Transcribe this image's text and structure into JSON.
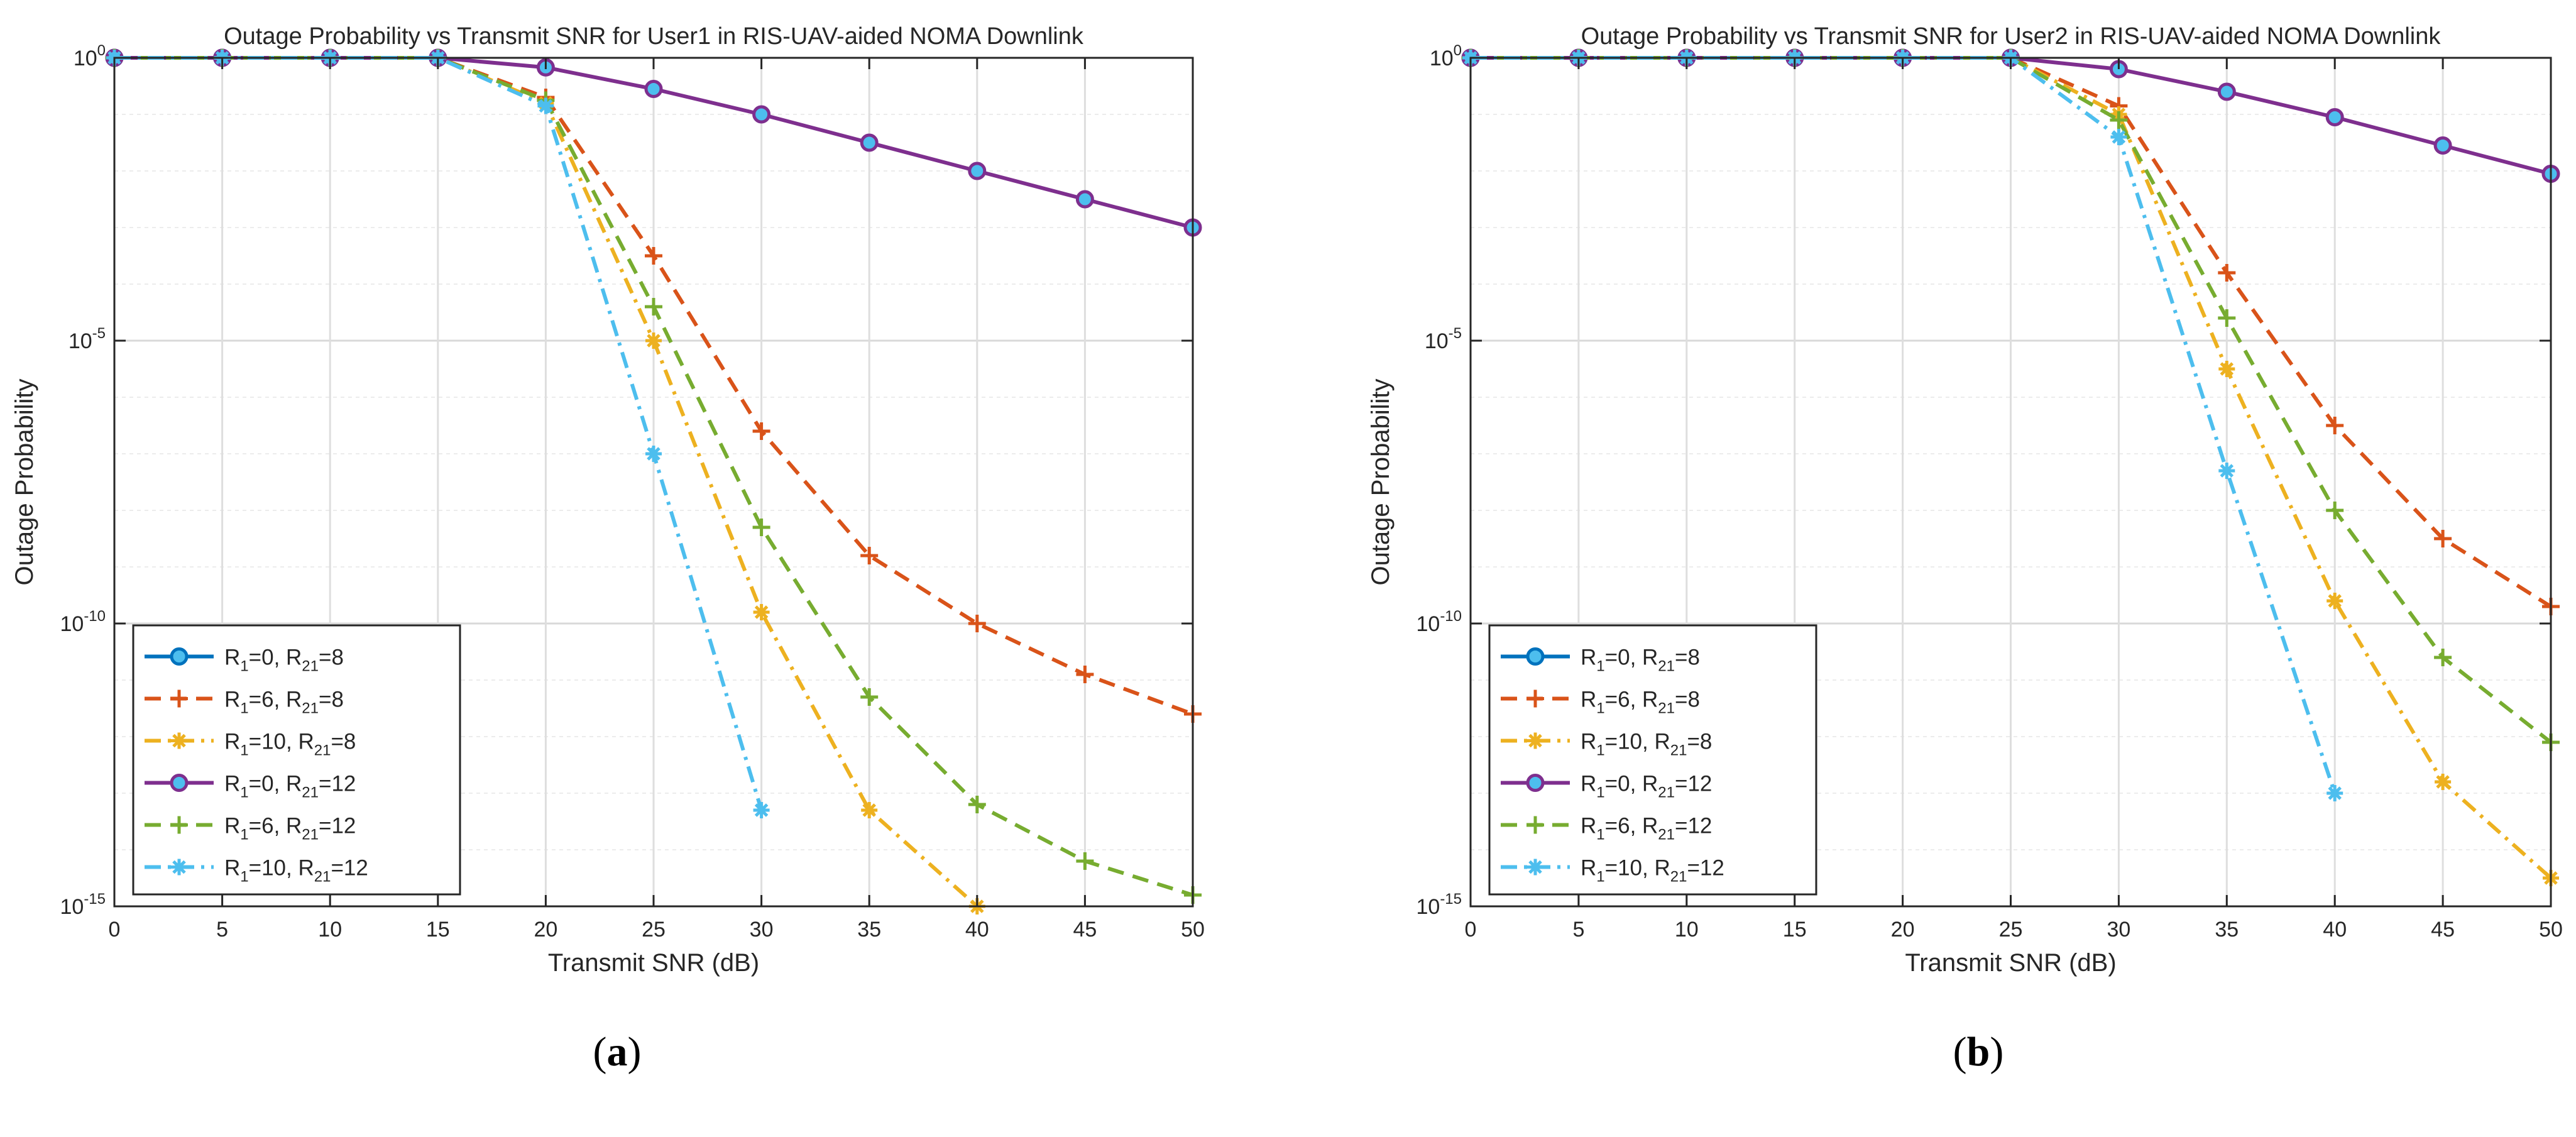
{
  "chart_data": [
    {
      "type": "line",
      "panel_label_prefix": "(",
      "panel_label_letter": "a",
      "panel_label_suffix": ")",
      "title": "Outage Probability vs Transmit SNR for User1 in RIS-UAV-aided NOMA Downlink",
      "xlabel": "Transmit SNR (dB)",
      "ylabel": "Outage Probability",
      "xlim": [
        0,
        50
      ],
      "ylim_log10": [
        -15,
        0
      ],
      "y_scale": "log",
      "grid": true,
      "legend_position": "bottom-left",
      "x_ticks": [
        "0",
        "5",
        "10",
        "15",
        "20",
        "25",
        "30",
        "35",
        "40",
        "45",
        "50"
      ],
      "y_ticks": [
        {
          "base": "10",
          "exp": "0",
          "log10": 0
        },
        {
          "base": "10",
          "exp": "-5",
          "log10": -5
        },
        {
          "base": "10",
          "exp": "-10",
          "log10": -10
        },
        {
          "base": "10",
          "exp": "-15",
          "log10": -15
        }
      ],
      "series": [
        {
          "name": "R1=0, R21=8",
          "leg": {
            "a": "0",
            "b": "8"
          },
          "color": "#0072BD",
          "dash": "solid",
          "marker": "circle",
          "x": [
            0,
            5,
            10,
            15
          ],
          "log10_y": [
            0,
            0,
            0,
            0
          ]
        },
        {
          "name": "R1=6, R21=8",
          "leg": {
            "a": "6",
            "b": "8"
          },
          "color": "#D95319",
          "dash": "dashed",
          "marker": "plus",
          "x": [
            0,
            5,
            10,
            15,
            20,
            25,
            30,
            35,
            40,
            45,
            50
          ],
          "log10_y": [
            0,
            0,
            0,
            0,
            -0.7,
            -3.5,
            -6.6,
            -8.8,
            -10.0,
            -10.9,
            -11.6
          ]
        },
        {
          "name": "R1=10, R21=8",
          "leg": {
            "a": "10",
            "b": "8"
          },
          "color": "#EDB120",
          "dash": "dashdot",
          "marker": "asterisk",
          "x": [
            0,
            5,
            10,
            15,
            20,
            25,
            30,
            35,
            40
          ],
          "log10_y": [
            0,
            0,
            0,
            0,
            -0.8,
            -5.0,
            -9.8,
            -13.3,
            -15.0
          ]
        },
        {
          "name": "R1=0, R21=12",
          "leg": {
            "a": "0",
            "b": "12"
          },
          "color": "#7E2F8E",
          "dash": "solid",
          "marker": "circle",
          "x": [
            0,
            5,
            10,
            15,
            20,
            25,
            30,
            35,
            40,
            45,
            50
          ],
          "log10_y": [
            0,
            0,
            0,
            0,
            -0.17,
            -0.55,
            -1.0,
            -1.5,
            -2.0,
            -2.5,
            -3.0
          ]
        },
        {
          "name": "R1=6, R21=12",
          "leg": {
            "a": "6",
            "b": "12"
          },
          "color": "#77AC30",
          "dash": "dashed",
          "marker": "plus",
          "x": [
            0,
            5,
            10,
            15,
            20,
            25,
            30,
            35,
            40,
            45,
            50
          ],
          "log10_y": [
            0,
            0,
            0,
            0,
            -0.75,
            -4.4,
            -8.3,
            -11.3,
            -13.2,
            -14.2,
            -14.8
          ]
        },
        {
          "name": "R1=10, R21=12",
          "leg": {
            "a": "10",
            "b": "12"
          },
          "color": "#4DBEEE",
          "dash": "dashdot",
          "marker": "asterisk",
          "x": [
            0,
            5,
            10,
            15,
            20,
            25,
            30
          ],
          "log10_y": [
            0,
            0,
            0,
            0,
            -0.85,
            -7.0,
            -13.3
          ]
        }
      ]
    },
    {
      "type": "line",
      "panel_label_prefix": "(",
      "panel_label_letter": "b",
      "panel_label_suffix": ")",
      "title": "Outage Probability vs Transmit SNR for User2 in RIS-UAV-aided NOMA Downlink",
      "xlabel": "Transmit SNR (dB)",
      "ylabel": "Outage Probability",
      "xlim": [
        0,
        50
      ],
      "ylim_log10": [
        -15,
        0
      ],
      "y_scale": "log",
      "grid": true,
      "legend_position": "bottom-left",
      "x_ticks": [
        "0",
        "5",
        "10",
        "15",
        "20",
        "25",
        "30",
        "35",
        "40",
        "45",
        "50"
      ],
      "y_ticks": [
        {
          "base": "10",
          "exp": "0",
          "log10": 0
        },
        {
          "base": "10",
          "exp": "-5",
          "log10": -5
        },
        {
          "base": "10",
          "exp": "-10",
          "log10": -10
        },
        {
          "base": "10",
          "exp": "-15",
          "log10": -15
        }
      ],
      "series": [
        {
          "name": "R1=0, R21=8",
          "leg": {
            "a": "0",
            "b": "8"
          },
          "color": "#0072BD",
          "dash": "solid",
          "marker": "circle",
          "x": [
            0,
            5,
            10,
            15,
            20,
            25
          ],
          "log10_y": [
            0,
            0,
            0,
            0,
            0,
            0
          ]
        },
        {
          "name": "R1=6, R21=8",
          "leg": {
            "a": "6",
            "b": "8"
          },
          "color": "#D95319",
          "dash": "dashed",
          "marker": "plus",
          "x": [
            0,
            5,
            10,
            15,
            20,
            25,
            30,
            35,
            40,
            45,
            50
          ],
          "log10_y": [
            0,
            0,
            0,
            0,
            0,
            0,
            -0.85,
            -3.8,
            -6.5,
            -8.5,
            -9.7
          ]
        },
        {
          "name": "R1=10, R21=8",
          "leg": {
            "a": "10",
            "b": "8"
          },
          "color": "#EDB120",
          "dash": "dashdot",
          "marker": "asterisk",
          "x": [
            0,
            5,
            10,
            15,
            20,
            25,
            30,
            35,
            40,
            45,
            50
          ],
          "log10_y": [
            0,
            0,
            0,
            0,
            0,
            0,
            -1.0,
            -5.5,
            -9.6,
            -12.8,
            -14.5
          ]
        },
        {
          "name": "R1=0, R21=12",
          "leg": {
            "a": "0",
            "b": "12"
          },
          "color": "#7E2F8E",
          "dash": "solid",
          "marker": "circle",
          "x": [
            0,
            5,
            10,
            15,
            20,
            25,
            30,
            35,
            40,
            45,
            50
          ],
          "log10_y": [
            0,
            0,
            0,
            0,
            0,
            0,
            -0.2,
            -0.6,
            -1.05,
            -1.55,
            -2.05
          ]
        },
        {
          "name": "R1=6, R21=12",
          "leg": {
            "a": "6",
            "b": "12"
          },
          "color": "#77AC30",
          "dash": "dashed",
          "marker": "plus",
          "x": [
            0,
            5,
            10,
            15,
            20,
            25,
            30,
            35,
            40,
            45,
            50
          ],
          "log10_y": [
            0,
            0,
            0,
            0,
            0,
            0,
            -1.1,
            -4.6,
            -8.0,
            -10.6,
            -12.1
          ]
        },
        {
          "name": "R1=10, R21=12",
          "leg": {
            "a": "10",
            "b": "12"
          },
          "color": "#4DBEEE",
          "dash": "dashdot",
          "marker": "asterisk",
          "x": [
            0,
            5,
            10,
            15,
            20,
            25,
            30,
            35,
            40
          ],
          "log10_y": [
            0,
            0,
            0,
            0,
            0,
            0,
            -1.4,
            -7.3,
            -13.0
          ]
        }
      ]
    }
  ]
}
